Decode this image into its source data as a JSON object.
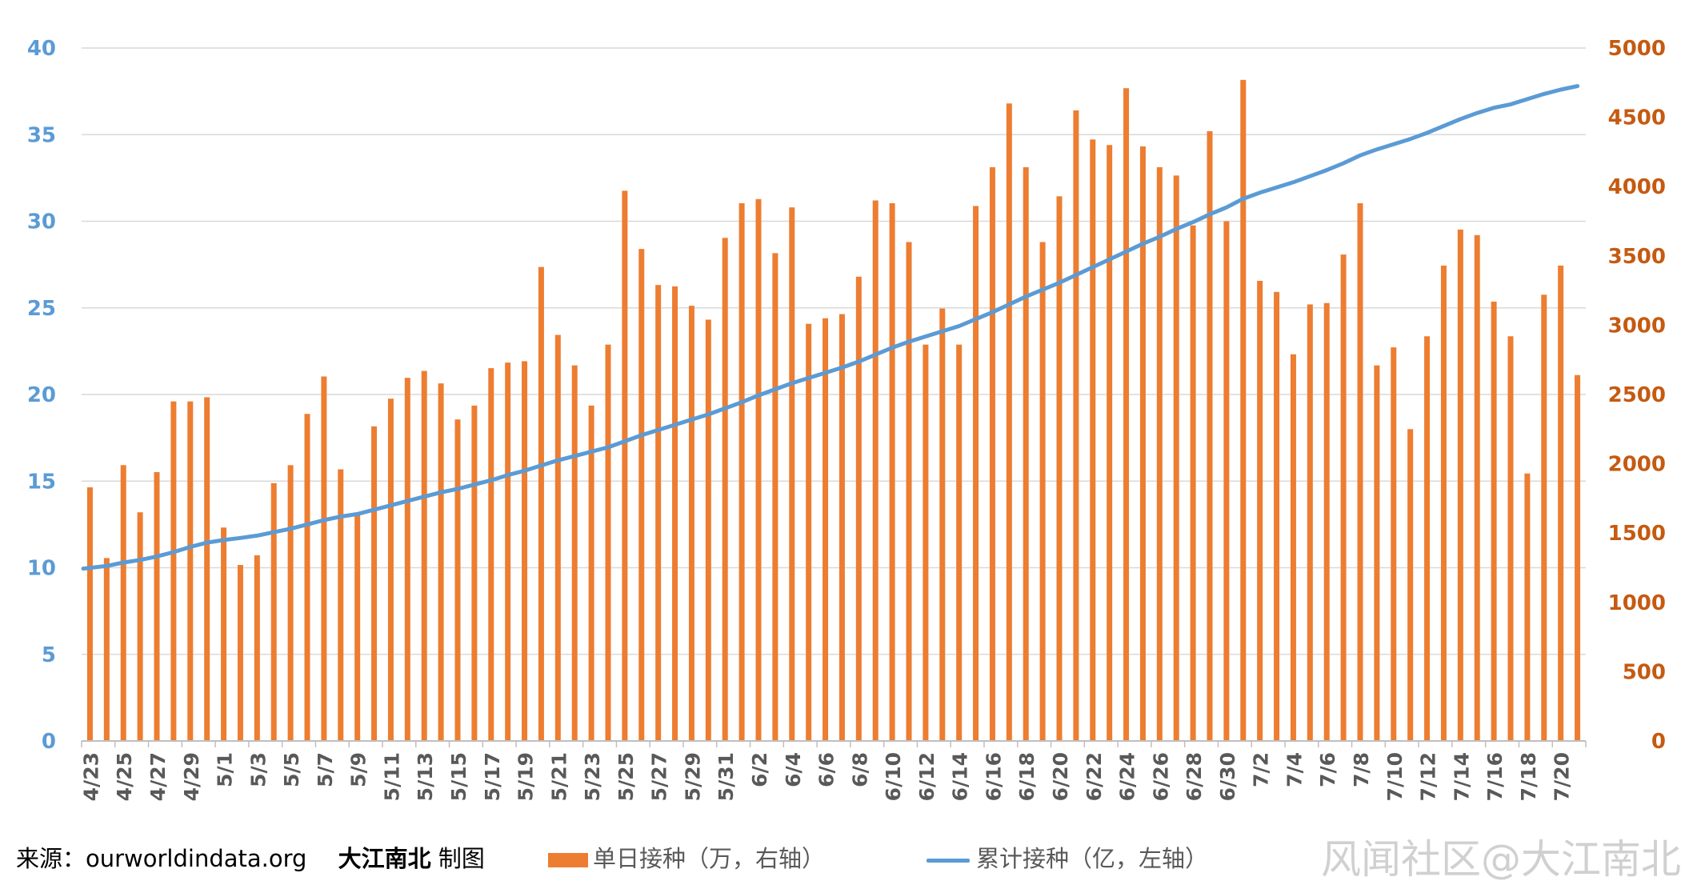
{
  "chart_data": {
    "type": "bar+line",
    "categories": [
      "4/23",
      "4/24",
      "4/25",
      "4/26",
      "4/27",
      "4/28",
      "4/29",
      "4/30",
      "5/1",
      "5/2",
      "5/3",
      "5/4",
      "5/5",
      "5/6",
      "5/7",
      "5/8",
      "5/9",
      "5/10",
      "5/11",
      "5/12",
      "5/13",
      "5/14",
      "5/15",
      "5/16",
      "5/17",
      "5/18",
      "5/19",
      "5/20",
      "5/21",
      "5/22",
      "5/23",
      "5/24",
      "5/25",
      "5/26",
      "5/27",
      "5/28",
      "5/29",
      "5/30",
      "5/31",
      "6/1",
      "6/2",
      "6/3",
      "6/4",
      "6/5",
      "6/6",
      "6/7",
      "6/8",
      "6/9",
      "6/10",
      "6/11",
      "6/12",
      "6/13",
      "6/14",
      "6/15",
      "6/16",
      "6/17",
      "6/18",
      "6/19",
      "6/20",
      "6/21",
      "6/22",
      "6/23",
      "6/24",
      "6/25",
      "6/26",
      "6/27",
      "6/28",
      "6/29",
      "6/30",
      "7/1",
      "7/2",
      "7/3",
      "7/4",
      "7/5",
      "7/6",
      "7/7",
      "7/8",
      "7/9",
      "7/10",
      "7/11",
      "7/12",
      "7/13",
      "7/14",
      "7/15",
      "7/16",
      "7/17",
      "7/18",
      "7/19",
      "7/20",
      "7/21"
    ],
    "tick_labels": [
      "4/23",
      "4/25",
      "4/27",
      "4/29",
      "5/1",
      "5/3",
      "5/5",
      "5/7",
      "5/9",
      "5/11",
      "5/13",
      "5/15",
      "5/17",
      "5/19",
      "5/21",
      "5/23",
      "5/25",
      "5/27",
      "5/29",
      "5/31",
      "6/2",
      "6/4",
      "6/6",
      "6/8",
      "6/10",
      "6/12",
      "6/14",
      "6/16",
      "6/18",
      "6/20",
      "6/22",
      "6/24",
      "6/26",
      "6/28",
      "6/30",
      "7/2",
      "7/4",
      "7/6",
      "7/8",
      "7/10",
      "7/12",
      "7/14",
      "7/16",
      "7/18",
      "7/20"
    ],
    "series": [
      {
        "name": "单日接种（万，右轴）",
        "type": "bar",
        "axis": "right",
        "color": "#ED7D31",
        "values": [
          1830,
          1320,
          1990,
          1650,
          1940,
          2450,
          2450,
          2480,
          1540,
          1270,
          1340,
          1860,
          1990,
          2360,
          2630,
          1960,
          1630,
          2270,
          2470,
          2620,
          2670,
          2580,
          2320,
          2420,
          2690,
          2730,
          2740,
          3420,
          2930,
          2710,
          2420,
          2860,
          3970,
          3550,
          3290,
          3280,
          3140,
          3040,
          3630,
          3880,
          3910,
          3520,
          3850,
          3010,
          3050,
          3080,
          3350,
          3900,
          3880,
          3600,
          2860,
          3120,
          2860,
          3860,
          4140,
          4600,
          4140,
          3600,
          3930,
          4550,
          4340,
          4300,
          4710,
          4290,
          4140,
          4080,
          3720,
          4400,
          3750,
          4770,
          3320,
          3240,
          2790,
          3150,
          3160,
          3510,
          3880,
          2710,
          2840,
          2250,
          2920,
          3430,
          3690,
          3650,
          3170,
          2920,
          1930,
          3220,
          3430,
          2640
        ]
      },
      {
        "name": "累计接种（亿，左轴）",
        "type": "line",
        "axis": "left",
        "color": "#5B9BD5",
        "values": [
          9.95,
          10.1,
          10.3,
          10.45,
          10.65,
          10.9,
          11.2,
          11.45,
          11.6,
          11.72,
          11.85,
          12.05,
          12.25,
          12.5,
          12.75,
          12.95,
          13.1,
          13.35,
          13.6,
          13.85,
          14.1,
          14.35,
          14.55,
          14.8,
          15.05,
          15.35,
          15.6,
          15.9,
          16.2,
          16.45,
          16.7,
          16.95,
          17.3,
          17.65,
          17.95,
          18.25,
          18.55,
          18.85,
          19.2,
          19.55,
          19.95,
          20.3,
          20.65,
          20.95,
          21.25,
          21.55,
          21.9,
          22.3,
          22.7,
          23.05,
          23.35,
          23.65,
          23.95,
          24.35,
          24.75,
          25.2,
          25.65,
          26.05,
          26.45,
          26.9,
          27.35,
          27.8,
          28.25,
          28.7,
          29.1,
          29.55,
          29.95,
          30.4,
          30.8,
          31.3,
          31.65,
          31.95,
          32.25,
          32.6,
          32.95,
          33.35,
          33.8,
          34.15,
          34.45,
          34.75,
          35.1,
          35.5,
          35.9,
          36.25,
          36.55,
          36.75,
          37.05,
          37.35,
          37.6,
          37.8
        ]
      }
    ],
    "left_axis": {
      "ylim": [
        0,
        40
      ],
      "ticks": [
        0,
        5,
        10,
        15,
        20,
        25,
        30,
        35,
        40
      ],
      "color": "#5B9BD5"
    },
    "right_axis": {
      "ylim": [
        0,
        5000
      ],
      "ticks": [
        0,
        500,
        1000,
        1500,
        2000,
        2500,
        3000,
        3500,
        4000,
        4500,
        5000
      ],
      "color": "#C55A11"
    },
    "grid": true,
    "legend": "bottom"
  },
  "footer": {
    "source_label": "来源：ourworldindata.org",
    "maker_name": "大江南北",
    "maker_suffix": "制图",
    "legend_bar_label": "单日接种（万，右轴）",
    "legend_line_label": "累计接种（亿，左轴）",
    "watermark": "风闻社区@大江南北"
  }
}
